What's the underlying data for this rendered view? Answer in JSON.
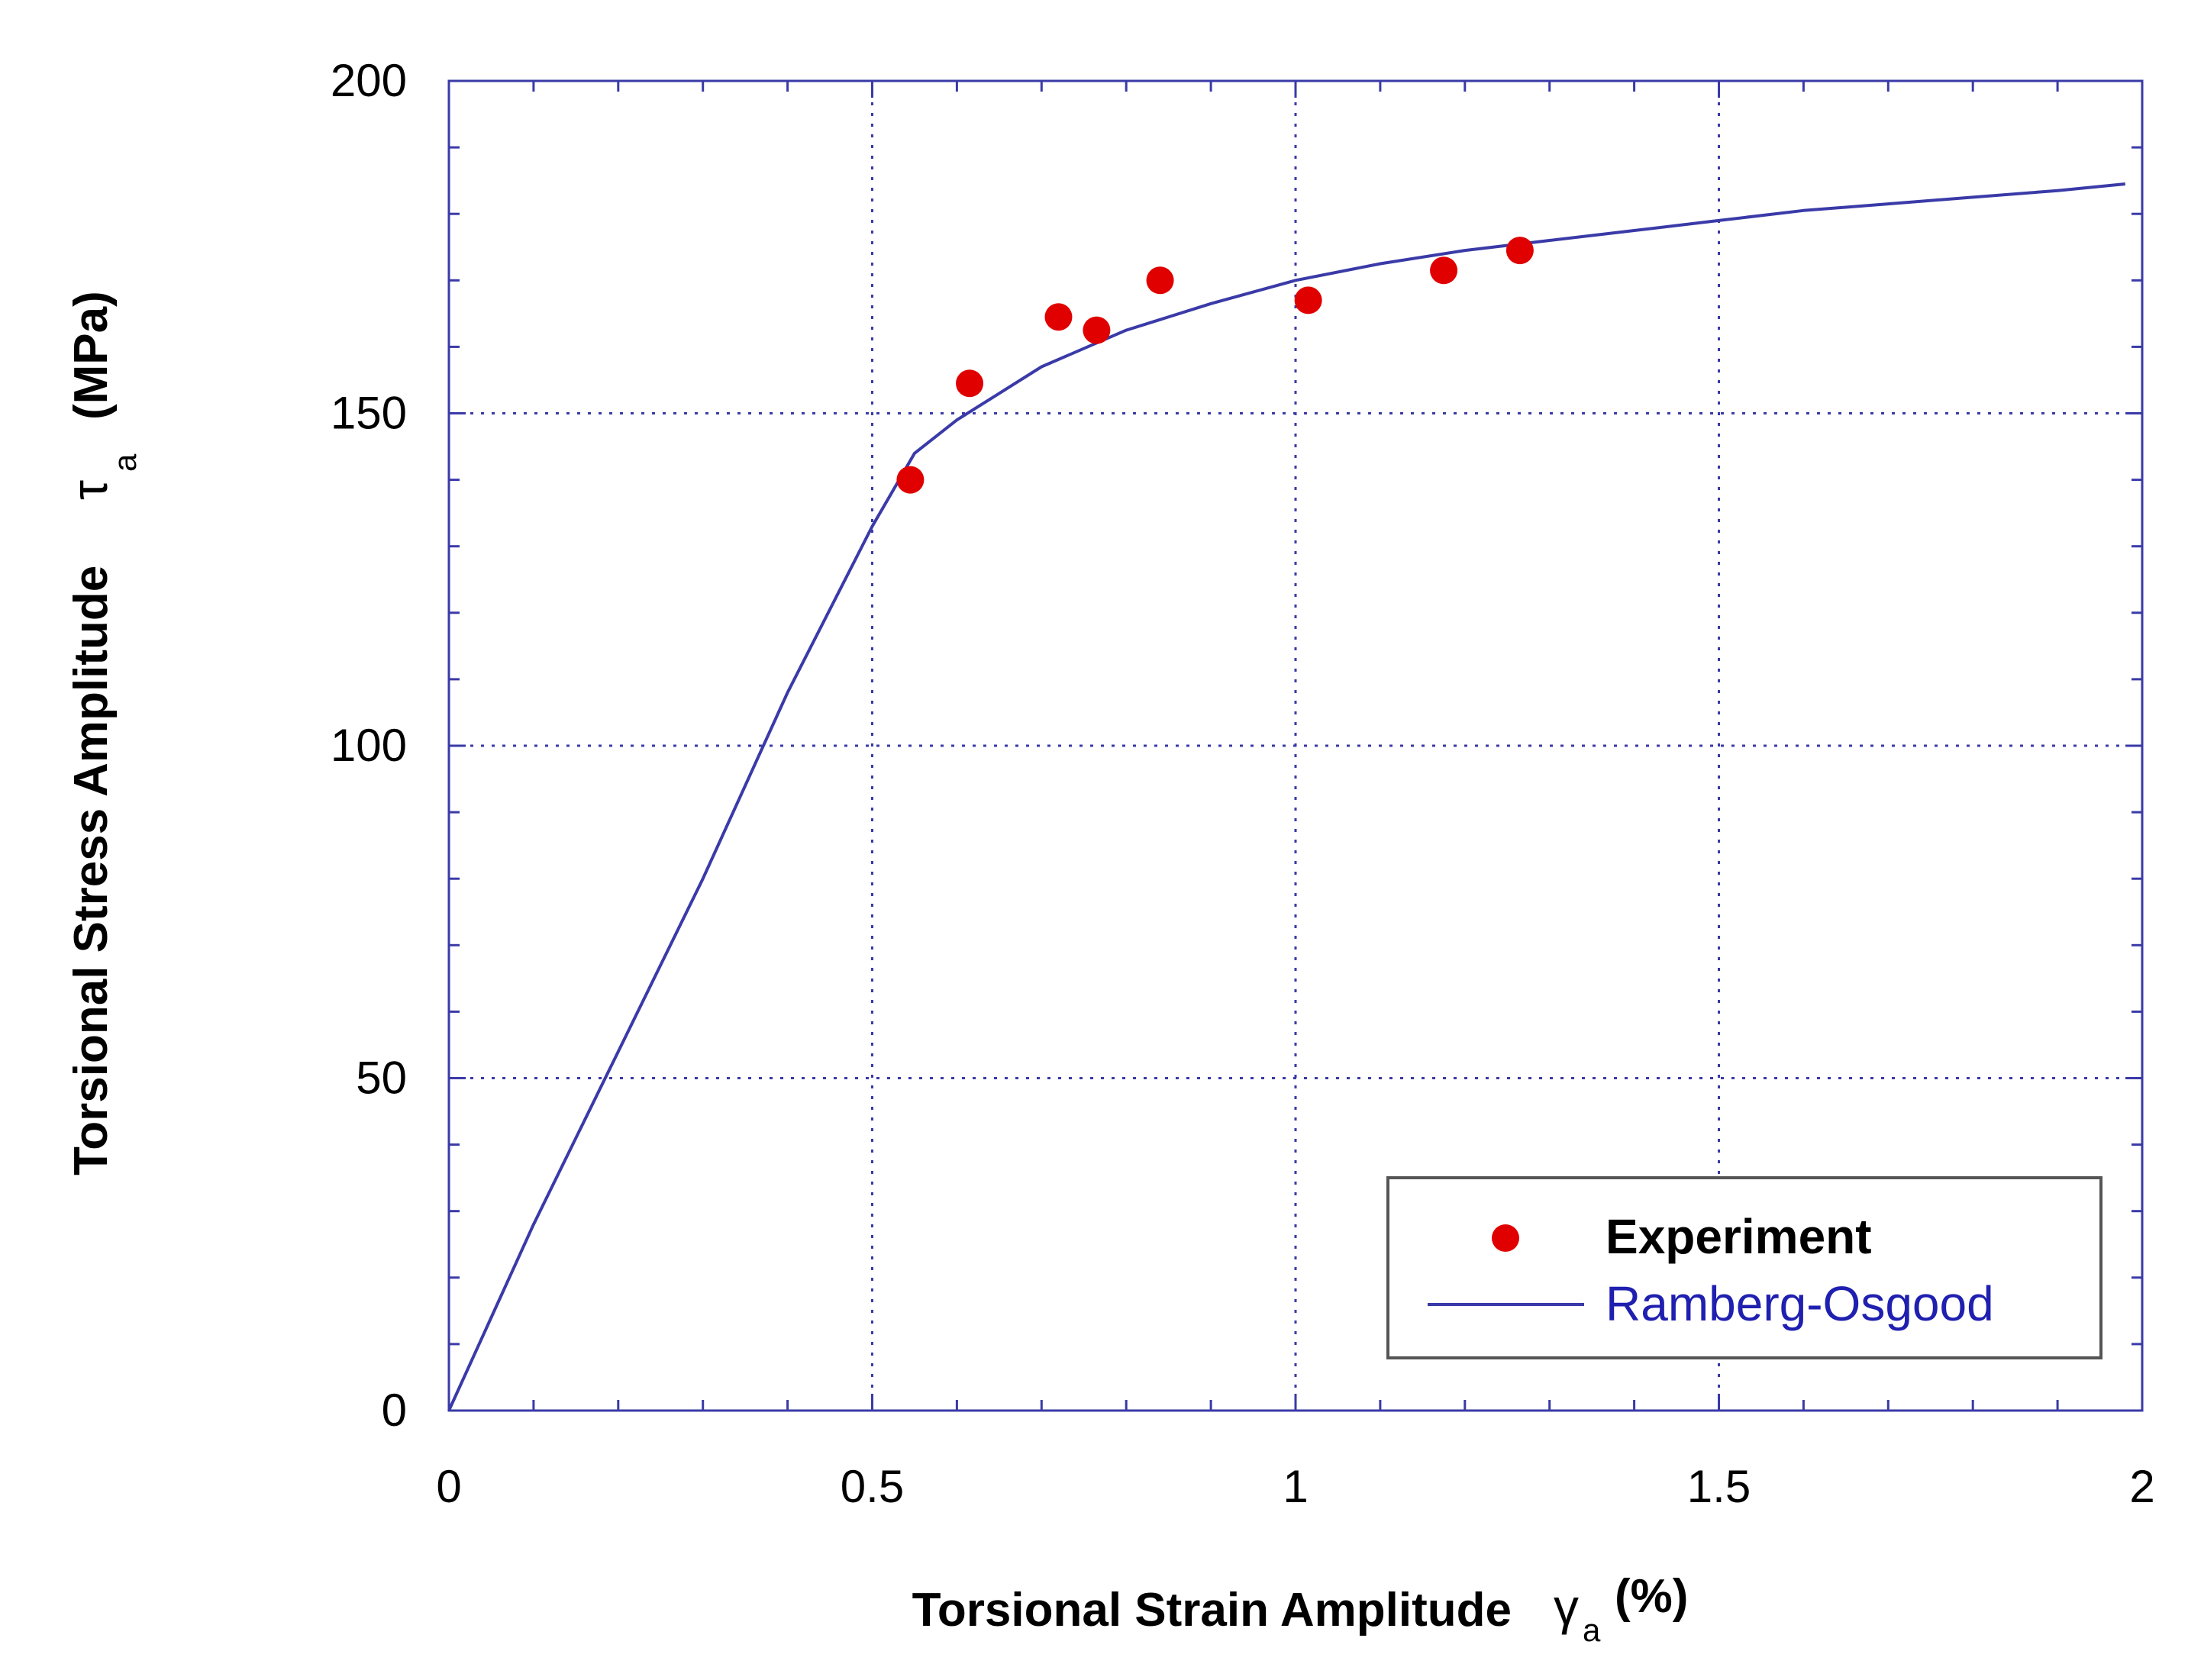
{
  "chart_data": {
    "type": "scatter",
    "title": "",
    "xlabel": "Torsional Strain Amplitude",
    "xlabel_symbol": "γ",
    "xlabel_subscript": "a",
    "xlabel_unit": "(%)",
    "ylabel": "Torsional Stress Amplitude",
    "ylabel_symbol": "τ",
    "ylabel_subscript": "a",
    "ylabel_unit": "(MPa)",
    "xlim": [
      0,
      2
    ],
    "ylim": [
      0,
      200
    ],
    "x_ticks": [
      0,
      0.5,
      1,
      1.5,
      2
    ],
    "x_tick_labels": [
      "0",
      "0.5",
      "1",
      "1.5",
      "2"
    ],
    "y_ticks": [
      0,
      50,
      100,
      150,
      200
    ],
    "y_tick_labels": [
      "0",
      "50",
      "100",
      "150",
      "200"
    ],
    "x_minor_step": 0.1,
    "y_minor_step": 10,
    "grid": true,
    "legend_position": "bottom-right",
    "series": [
      {
        "name": "Experiment",
        "kind": "scatter",
        "color": "#e00000",
        "points": [
          {
            "x": 0.545,
            "y": 140
          },
          {
            "x": 0.615,
            "y": 154.5
          },
          {
            "x": 0.72,
            "y": 164.5
          },
          {
            "x": 0.765,
            "y": 162.5
          },
          {
            "x": 0.84,
            "y": 170
          },
          {
            "x": 1.015,
            "y": 167
          },
          {
            "x": 1.175,
            "y": 171.5
          },
          {
            "x": 1.265,
            "y": 174.5
          }
        ]
      },
      {
        "name": "Ramberg-Osgood",
        "kind": "line",
        "color": "#3a3aa8",
        "points": [
          {
            "x": 0,
            "y": 0
          },
          {
            "x": 0.1,
            "y": 28
          },
          {
            "x": 0.2,
            "y": 54
          },
          {
            "x": 0.3,
            "y": 80
          },
          {
            "x": 0.4,
            "y": 108
          },
          {
            "x": 0.5,
            "y": 133
          },
          {
            "x": 0.55,
            "y": 144
          },
          {
            "x": 0.6,
            "y": 149
          },
          {
            "x": 0.65,
            "y": 153
          },
          {
            "x": 0.7,
            "y": 157
          },
          {
            "x": 0.8,
            "y": 162.5
          },
          {
            "x": 0.9,
            "y": 166.5
          },
          {
            "x": 1.0,
            "y": 170
          },
          {
            "x": 1.1,
            "y": 172.5
          },
          {
            "x": 1.2,
            "y": 174.5
          },
          {
            "x": 1.3,
            "y": 176
          },
          {
            "x": 1.4,
            "y": 177.5
          },
          {
            "x": 1.5,
            "y": 179
          },
          {
            "x": 1.6,
            "y": 180.5
          },
          {
            "x": 1.7,
            "y": 181.5
          },
          {
            "x": 1.8,
            "y": 182.5
          },
          {
            "x": 1.9,
            "y": 183.5
          },
          {
            "x": 1.98,
            "y": 184.5
          }
        ]
      }
    ],
    "legend": [
      {
        "label": "Experiment",
        "marker": "dot"
      },
      {
        "label": "Ramberg-Osgood",
        "marker": "line"
      }
    ],
    "colors": {
      "frame": "#3a3aa8",
      "grid": "#3a3aa8",
      "experiment": "#e00000",
      "fit": "#3a3aa8",
      "fit_text": "#1f1fb0"
    }
  }
}
